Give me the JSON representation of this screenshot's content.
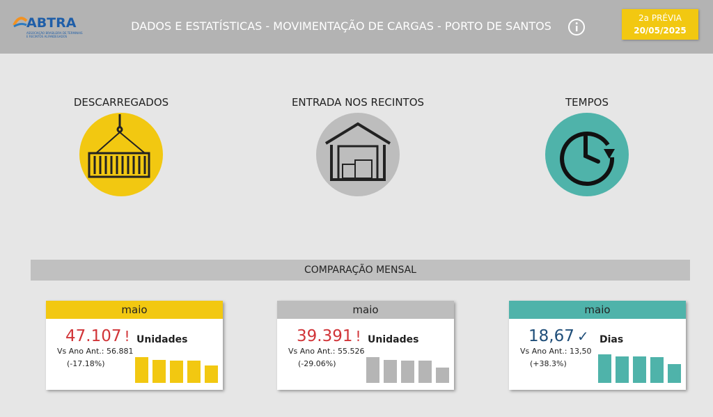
{
  "header": {
    "logo": "ABTRA",
    "logo_subtitle": [
      "ASSOCIAÇÃO BRASILEIRA DE TERMINAIS",
      "E RECINTOS ALFANDEGADOS"
    ],
    "title": "DADOS E ESTATÍSTICAS - MOVIMENTAÇÃO DE CARGAS - PORTO DE SANTOS",
    "badge": {
      "line1": "2a PRÉVIA",
      "line2": "20/05/2025"
    }
  },
  "categories": [
    {
      "label": "DESCARREGADOS"
    },
    {
      "label": "ENTRADA NOS RECINTOS"
    },
    {
      "label": "TEMPOS"
    }
  ],
  "section_title": "COMPARAÇÃO MENSAL",
  "cards": [
    {
      "month": "maio",
      "value": "47.107",
      "indicator": "!",
      "comparison": "Vs Ano Ant.: 56.881",
      "change": "(-17.18%)",
      "unit": "Unidades",
      "color": "#f2c811",
      "value_color": "#d13438",
      "bar_color": "#f2c811",
      "bars": [
        37,
        33,
        32,
        32,
        25
      ]
    },
    {
      "month": "maio",
      "value": "39.391",
      "indicator": "!",
      "comparison": "Vs Ano Ant.: 55.526",
      "change": "(-29.06%)",
      "unit": "Unidades",
      "color": "#bdbdbd",
      "value_color": "#d13438",
      "bar_color": "#b5b5b5",
      "bars": [
        37,
        33,
        32,
        32,
        22
      ]
    },
    {
      "month": "maio",
      "value": "18,67",
      "indicator": "✓",
      "comparison": "Vs Ano Ant.: 13,50",
      "change": "(+38.3%)",
      "unit": "Dias",
      "color": "#4fb3aa",
      "value_color": "#1f4e79",
      "bar_color": "#4fb3aa",
      "bars": [
        41,
        38,
        38,
        37,
        27
      ]
    }
  ]
}
